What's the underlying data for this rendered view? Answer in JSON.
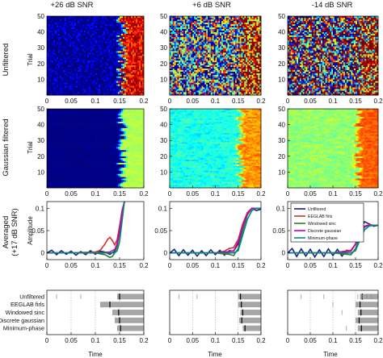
{
  "columns": [
    "+26 dB SNR",
    "+6 dB SNR",
    "-14 dB SNR"
  ],
  "rows": [
    "Unfiltered",
    "Gaussian filtered",
    "Averaged",
    "(+17 dB SNR)"
  ],
  "axes": {
    "trial": "Trial",
    "amplitude": "Amplitude",
    "time": "Time",
    "time_ticks": [
      "0",
      "0.05",
      "0.1",
      "0.15",
      "0.2"
    ],
    "trial_ticks": [
      "10",
      "20",
      "30",
      "40",
      "50"
    ],
    "amplitude_ticks": [
      "0",
      "0.05",
      "0.1"
    ]
  },
  "chart_data": [
    {
      "type": "heatmap",
      "panel": "Unfiltered / +26 dB SNR",
      "xlabel": "",
      "ylabel": "Trial",
      "xlim": [
        0,
        0.2
      ],
      "ylim": [
        0,
        50
      ],
      "xticks": [
        "",
        "",
        "",
        "",
        ""
      ],
      "yticks": [
        "10",
        "20",
        "30",
        "40",
        "50"
      ],
      "colormap": "jet",
      "background_level": 0.0,
      "noise_level": 0.15,
      "onset_time": 0.15,
      "onset_jitter": 0.01
    },
    {
      "type": "heatmap",
      "panel": "Unfiltered / +6 dB SNR",
      "xlim": [
        0,
        0.2
      ],
      "ylim": [
        0,
        50
      ],
      "colormap": "jet",
      "background_level": 0.38,
      "noise_level": 0.55,
      "onset_time": 0.15,
      "onset_jitter": 0.01
    },
    {
      "type": "heatmap",
      "panel": "Unfiltered / -14 dB SNR",
      "xlim": [
        0,
        0.2
      ],
      "ylim": [
        0,
        50
      ],
      "colormap": "jet",
      "background_level": 0.5,
      "noise_level": 0.75,
      "onset_time": 0.15,
      "onset_jitter": 0.01
    },
    {
      "type": "heatmap",
      "panel": "Gaussian filtered / +26 dB SNR",
      "xlim": [
        0,
        0.2
      ],
      "ylim": [
        0,
        50
      ],
      "colormap": "jet",
      "background_level": 0.0,
      "noise_level": 0.04,
      "onset_time": 0.15,
      "onset_jitter": 0.01,
      "smooth": true
    },
    {
      "type": "heatmap",
      "panel": "Gaussian filtered / +6 dB SNR",
      "xlim": [
        0,
        0.2
      ],
      "ylim": [
        0,
        50
      ],
      "colormap": "jet",
      "background_level": 0.4,
      "noise_level": 0.1,
      "onset_time": 0.15,
      "onset_jitter": 0.01,
      "smooth": true
    },
    {
      "type": "heatmap",
      "panel": "Gaussian filtered / -14 dB SNR",
      "xlim": [
        0,
        0.2
      ],
      "ylim": [
        0,
        50
      ],
      "colormap": "jet",
      "background_level": 0.52,
      "noise_level": 0.08,
      "onset_time": 0.15,
      "onset_jitter": 0.01,
      "smooth": true
    },
    {
      "type": "line",
      "panel": "Averaged / +26 dB SNR",
      "xlim": [
        0,
        0.2
      ],
      "ylim": [
        -0.015,
        0.115
      ],
      "series": [
        {
          "name": "Unfiltered",
          "color": "#1a237e",
          "x": [
            0,
            0.01,
            0.02,
            0.03,
            0.04,
            0.05,
            0.06,
            0.07,
            0.08,
            0.09,
            0.1,
            0.11,
            0.12,
            0.13,
            0.14,
            0.145,
            0.15,
            0.155,
            0.16
          ],
          "y": [
            0,
            0.006,
            -0.004,
            0.005,
            -0.003,
            0.004,
            -0.005,
            0.003,
            -0.004,
            0.005,
            -0.003,
            0.004,
            0.002,
            -0.003,
            0.004,
            0.02,
            0.05,
            0.09,
            0.115
          ]
        },
        {
          "name": "EEGLAB firls",
          "color": "#d32f2f",
          "x": [
            0,
            0.05,
            0.1,
            0.11,
            0.12,
            0.125,
            0.13,
            0.135,
            0.14,
            0.145,
            0.15,
            0.155,
            0.16
          ],
          "y": [
            0,
            0,
            0.002,
            0.006,
            0.02,
            0.03,
            0.035,
            0.028,
            0.018,
            0.03,
            0.06,
            0.095,
            0.115
          ]
        },
        {
          "name": "Windowed sinc",
          "color": "#2e7d32",
          "x": [
            0,
            0.05,
            0.1,
            0.12,
            0.13,
            0.135,
            0.14,
            0.145,
            0.15,
            0.155,
            0.16
          ],
          "y": [
            0,
            0,
            0,
            -0.004,
            -0.01,
            -0.008,
            0,
            0.015,
            0.045,
            0.085,
            0.115
          ]
        },
        {
          "name": "Discrete gaussian",
          "color": "#c000c0",
          "x": [
            0,
            0.05,
            0.1,
            0.13,
            0.14,
            0.145,
            0.15,
            0.155,
            0.16
          ],
          "y": [
            0,
            0,
            0,
            0.002,
            0.008,
            0.02,
            0.05,
            0.09,
            0.115
          ]
        },
        {
          "name": "Minimum-phase",
          "color": "#00897b",
          "x": [
            0,
            0.05,
            0.1,
            0.14,
            0.145,
            0.15,
            0.155,
            0.16
          ],
          "y": [
            0,
            0,
            0,
            0,
            0.005,
            0.025,
            0.07,
            0.115
          ]
        }
      ]
    },
    {
      "type": "line",
      "panel": "Averaged / +6 dB SNR",
      "xlim": [
        0,
        0.2
      ],
      "ylim": [
        -0.015,
        0.115
      ],
      "series": [
        {
          "name": "Unfiltered",
          "color": "#1a237e",
          "x": [
            0,
            0.01,
            0.02,
            0.03,
            0.04,
            0.05,
            0.06,
            0.07,
            0.08,
            0.09,
            0.1,
            0.11,
            0.12,
            0.13,
            0.14,
            0.15,
            0.16,
            0.17,
            0.18,
            0.19,
            0.2
          ],
          "y": [
            0,
            0.008,
            -0.006,
            0.007,
            -0.005,
            0.006,
            -0.007,
            0.005,
            -0.006,
            0.007,
            -0.004,
            0.006,
            -0.005,
            0.005,
            0.004,
            0.02,
            0.06,
            0.09,
            0.1,
            0.095,
            0.098
          ]
        },
        {
          "name": "EEGLAB firls",
          "color": "#d32f2f",
          "x": [
            0,
            0.05,
            0.1,
            0.12,
            0.13,
            0.14,
            0.15,
            0.16,
            0.17,
            0.18,
            0.19,
            0.2
          ],
          "y": [
            0,
            0,
            0,
            0.004,
            0.01,
            0.012,
            0.03,
            0.065,
            0.09,
            0.1,
            0.1,
            0.1
          ]
        },
        {
          "name": "Windowed sinc",
          "color": "#2e7d32",
          "x": [
            0,
            0.05,
            0.1,
            0.13,
            0.14,
            0.15,
            0.16,
            0.17,
            0.18,
            0.19,
            0.2
          ],
          "y": [
            0,
            0,
            0,
            -0.003,
            -0.006,
            0.01,
            0.05,
            0.085,
            0.1,
            0.1,
            0.1
          ]
        },
        {
          "name": "Discrete gaussian",
          "color": "#c000c0",
          "x": [
            0,
            0.05,
            0.1,
            0.14,
            0.15,
            0.16,
            0.17,
            0.18,
            0.19,
            0.2
          ],
          "y": [
            0,
            0,
            0,
            0.004,
            0.025,
            0.06,
            0.088,
            0.1,
            0.1,
            0.1
          ]
        },
        {
          "name": "Minimum-phase",
          "color": "#00897b",
          "x": [
            0,
            0.05,
            0.1,
            0.14,
            0.15,
            0.16,
            0.17,
            0.18,
            0.19,
            0.2
          ],
          "y": [
            0,
            0,
            0,
            0,
            0.005,
            0.04,
            0.075,
            0.095,
            0.1,
            0.1
          ]
        }
      ]
    },
    {
      "type": "line",
      "panel": "Averaged / -14 dB SNR",
      "xlim": [
        0,
        0.2
      ],
      "ylim": [
        -0.015,
        0.115
      ],
      "legend": "top-right",
      "series": [
        {
          "name": "Unfiltered",
          "color": "#1a237e",
          "x": [
            0,
            0.01,
            0.02,
            0.03,
            0.04,
            0.05,
            0.06,
            0.07,
            0.08,
            0.09,
            0.1,
            0.11,
            0.12,
            0.13,
            0.14,
            0.15,
            0.16,
            0.17,
            0.18,
            0.19,
            0.2
          ],
          "y": [
            0,
            0.01,
            -0.008,
            0.009,
            -0.007,
            0.008,
            -0.009,
            0.007,
            -0.008,
            0.009,
            -0.006,
            0.008,
            -0.007,
            0.006,
            0.005,
            0.02,
            0.05,
            0.07,
            0.065,
            0.06,
            0.062
          ]
        },
        {
          "name": "EEGLAB firls",
          "color": "#d32f2f",
          "x": [
            0,
            0.05,
            0.1,
            0.14,
            0.15,
            0.16,
            0.17,
            0.18,
            0.19,
            0.2
          ],
          "y": [
            0,
            0,
            0,
            0.006,
            0.02,
            0.045,
            0.06,
            0.063,
            0.062,
            0.062
          ]
        },
        {
          "name": "Windowed sinc",
          "color": "#2e7d32",
          "x": [
            0,
            0.05,
            0.1,
            0.14,
            0.15,
            0.16,
            0.17,
            0.18,
            0.19,
            0.2
          ],
          "y": [
            0,
            0,
            0,
            -0.004,
            0.01,
            0.04,
            0.058,
            0.062,
            0.062,
            0.062
          ]
        },
        {
          "name": "Discrete gaussian",
          "color": "#c000c0",
          "x": [
            0,
            0.05,
            0.1,
            0.14,
            0.15,
            0.16,
            0.17,
            0.18,
            0.19,
            0.2
          ],
          "y": [
            0,
            0,
            0,
            0.004,
            0.02,
            0.045,
            0.06,
            0.062,
            0.062,
            0.062
          ]
        },
        {
          "name": "Minimum-phase",
          "color": "#00897b",
          "x": [
            0,
            0.05,
            0.1,
            0.14,
            0.15,
            0.16,
            0.17,
            0.18,
            0.19,
            0.2
          ],
          "y": [
            0,
            0,
            0,
            0,
            0.005,
            0.03,
            0.052,
            0.06,
            0.062,
            0.062
          ]
        }
      ]
    },
    {
      "type": "bar",
      "panel": "Onset estimates / +26 dB SNR",
      "xlim": [
        0,
        0.2
      ],
      "categories": [
        "Unfiltered",
        "EEGLAB firls",
        "Windowed sinc",
        "Discrete gaussian",
        "Minimum-phase"
      ],
      "ranges": [
        [
          0.145,
          0.2
        ],
        [
          0.11,
          0.2
        ],
        [
          0.135,
          0.2
        ],
        [
          0.14,
          0.2
        ],
        [
          0.145,
          0.2
        ]
      ],
      "medians": [
        0.15,
        0.13,
        0.148,
        0.15,
        0.152
      ],
      "outliers": [
        [
          0.02,
          0.07
        ],
        [],
        [],
        [],
        []
      ]
    },
    {
      "type": "bar",
      "panel": "Onset estimates / +6 dB SNR",
      "xlim": [
        0,
        0.2
      ],
      "categories": [
        "Unfiltered",
        "EEGLAB firls",
        "Windowed sinc",
        "Discrete gaussian",
        "Minimum-phase"
      ],
      "ranges": [
        [
          0.15,
          0.2
        ],
        [
          0.15,
          0.2
        ],
        [
          0.155,
          0.2
        ],
        [
          0.152,
          0.2
        ],
        [
          0.16,
          0.2
        ]
      ],
      "medians": [
        0.155,
        0.157,
        0.16,
        0.158,
        0.165
      ],
      "outliers": [
        [
          0.02,
          0.06
        ],
        [],
        [],
        [],
        []
      ]
    },
    {
      "type": "bar",
      "panel": "Onset estimates / -14 dB SNR",
      "xlim": [
        0,
        0.2
      ],
      "categories": [
        "Unfiltered",
        "EEGLAB firls",
        "Windowed sinc",
        "Discrete gaussian",
        "Minimum-phase"
      ],
      "ranges": [
        [
          0.16,
          0.2
        ],
        [
          0.15,
          0.2
        ],
        [
          0.155,
          0.2
        ],
        [
          0.15,
          0.2
        ],
        [
          0.155,
          0.2
        ]
      ],
      "medians": [
        0.165,
        0.16,
        0.162,
        0.158,
        0.163
      ],
      "outliers": [
        [
          0.03,
          0.08,
          0.155,
          0.165,
          0.175,
          0.185
        ],
        [
          0.1
        ],
        [
          0.12
        ],
        [],
        [
          0.13
        ]
      ]
    }
  ]
}
